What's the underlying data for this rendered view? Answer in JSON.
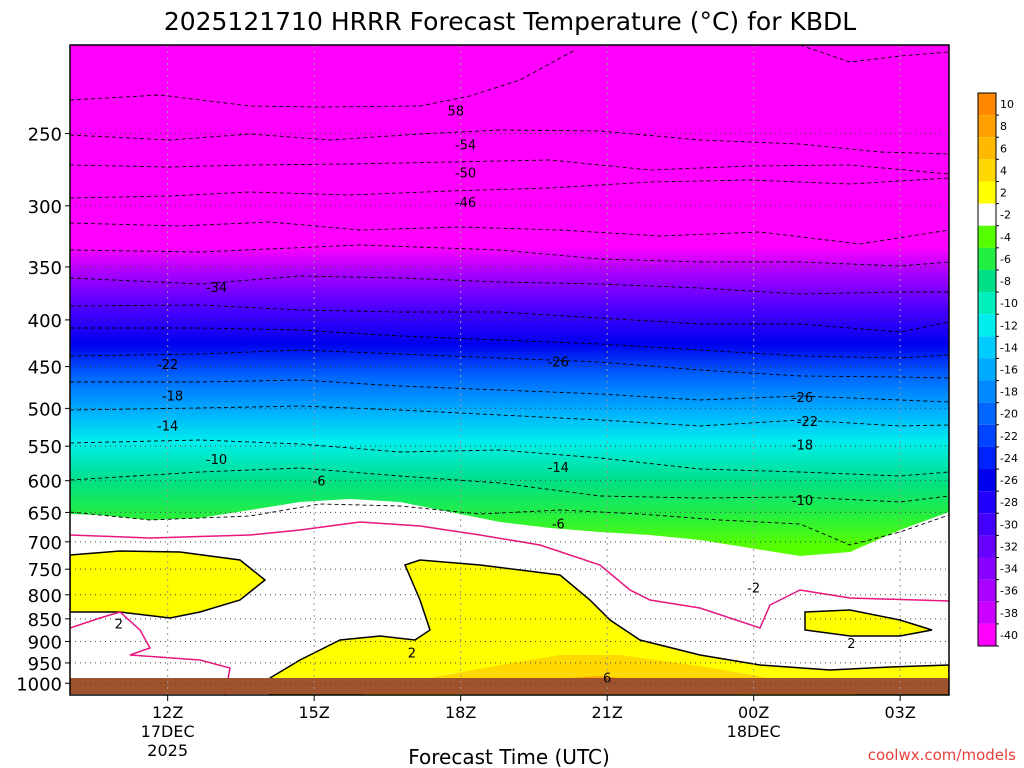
{
  "chart_data": {
    "type": "heatmap",
    "title": "2025121710 HRRR Forecast Temperature (°C) for KBDL",
    "xlabel": "Forecast Time (UTC)",
    "ylabel": "",
    "credit": "coolwx.com/models",
    "x_range_hours": [
      10,
      28
    ],
    "y_range_hpa": [
      200,
      1030
    ],
    "y_ticks": [
      "250",
      "300",
      "350",
      "400",
      "450",
      "500",
      "550",
      "600",
      "650",
      "700",
      "750",
      "800",
      "850",
      "900",
      "950",
      "1000"
    ],
    "x_ticks": [
      {
        "hour": 12,
        "label": "12Z",
        "date": "17DEC",
        "year": "2025"
      },
      {
        "hour": 15,
        "label": "15Z",
        "date": "",
        "year": ""
      },
      {
        "hour": 18,
        "label": "18Z",
        "date": "",
        "year": ""
      },
      {
        "hour": 21,
        "label": "21Z",
        "date": "",
        "year": ""
      },
      {
        "hour": 24,
        "label": "00Z",
        "date": "18DEC",
        "year": ""
      },
      {
        "hour": 27,
        "label": "03Z",
        "date": "",
        "year": ""
      }
    ],
    "colorbar": {
      "levels": [
        "10",
        "8",
        "6",
        "4",
        "2",
        "-2",
        "-4",
        "-6",
        "-8",
        "-10",
        "-12",
        "-14",
        "-16",
        "-18",
        "-20",
        "-22",
        "-24",
        "-26",
        "-28",
        "-30",
        "-32",
        "-34",
        "-36",
        "-38",
        "-40"
      ],
      "colors": [
        "#ff8800",
        "#ffa000",
        "#ffba00",
        "#ffd800",
        "#ffff00",
        "#ffffff",
        "#55ff00",
        "#22ee44",
        "#00e088",
        "#00eebb",
        "#00eeee",
        "#00ccff",
        "#00aaff",
        "#0088ff",
        "#0066ff",
        "#0044ff",
        "#0022ff",
        "#0000ee",
        "#2200ff",
        "#4400ff",
        "#6600ff",
        "#8800ff",
        "#aa00ff",
        "#cc00ff",
        "#ff00ff"
      ]
    },
    "contour_labels": [
      {
        "text": "58",
        "hour": 17.9,
        "hpa": 236
      },
      {
        "text": "-54",
        "hour": 18.1,
        "hpa": 257
      },
      {
        "text": "-50",
        "hour": 18.1,
        "hpa": 276
      },
      {
        "text": "-46",
        "hour": 18.1,
        "hpa": 297
      },
      {
        "text": "-34",
        "hour": 13.0,
        "hpa": 368
      },
      {
        "text": "-22",
        "hour": 12.0,
        "hpa": 447
      },
      {
        "text": "-18",
        "hour": 12.1,
        "hpa": 484
      },
      {
        "text": "-14",
        "hour": 12.0,
        "hpa": 522
      },
      {
        "text": "-10",
        "hour": 13.0,
        "hpa": 568
      },
      {
        "text": "-6",
        "hour": 15.1,
        "hpa": 600
      },
      {
        "text": "-26",
        "hour": 20.0,
        "hpa": 444
      },
      {
        "text": "-26",
        "hour": 25.0,
        "hpa": 486
      },
      {
        "text": "-22",
        "hour": 25.1,
        "hpa": 516
      },
      {
        "text": "-18",
        "hour": 25.0,
        "hpa": 548
      },
      {
        "text": "-14",
        "hour": 20.0,
        "hpa": 580
      },
      {
        "text": "-10",
        "hour": 25.0,
        "hpa": 630
      },
      {
        "text": "-6",
        "hour": 20.0,
        "hpa": 668
      },
      {
        "text": "-2",
        "hour": 24.0,
        "hpa": 785
      },
      {
        "text": "2",
        "hour": 11.0,
        "hpa": 860
      },
      {
        "text": "2",
        "hour": 17.0,
        "hpa": 925
      },
      {
        "text": "2",
        "hour": 26.0,
        "hpa": 903
      },
      {
        "text": "6",
        "hour": 21.0,
        "hpa": 985
      }
    ]
  }
}
